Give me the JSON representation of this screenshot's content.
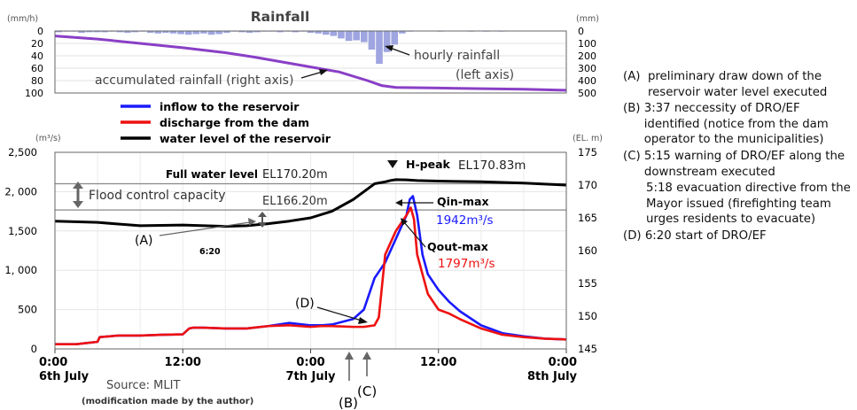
{
  "chart_data": {
    "type": "line",
    "rainfall_panel": {
      "title": "Rainfall",
      "left_unit": "(mm/h)",
      "right_unit": "(mm)",
      "left_ticks": [
        0,
        20,
        40,
        60,
        80,
        100
      ],
      "right_ticks": [
        0,
        100,
        200,
        300,
        400,
        500
      ],
      "hourly_rainfall_mm_per_h": [
        2,
        1,
        1,
        3,
        2,
        2,
        2,
        1,
        2,
        3,
        2,
        1,
        3,
        4,
        3,
        4,
        5,
        6,
        5,
        4,
        6,
        5,
        3,
        1,
        2,
        3,
        2,
        1,
        1,
        2,
        1,
        2,
        1,
        3,
        4,
        6,
        8,
        12,
        16,
        15,
        18,
        30,
        53,
        34,
        22,
        4,
        1,
        0,
        0,
        0,
        1,
        0,
        0,
        0,
        1,
        0,
        1,
        0,
        1,
        0,
        0,
        0,
        0,
        0,
        0,
        0,
        0
      ],
      "accumulated_rainfall_mm": {
        "x_hours": [
          0,
          6,
          12,
          18,
          24,
          28,
          32,
          36,
          40,
          44,
          46,
          48,
          54,
          60,
          66,
          72
        ],
        "values": [
          40,
          65,
          100,
          135,
          175,
          210,
          250,
          290,
          330,
          400,
          440,
          455,
          460,
          465,
          470,
          478
        ]
      },
      "annotations": {
        "hourly": "hourly rainfall",
        "hourly_axis": "(left axis)",
        "accumulated": "accumulated rainfall (right axis)"
      }
    },
    "main_panel": {
      "left_unit": "(m³/s)",
      "right_unit": "(EL. m)",
      "left_ticks": [
        "0",
        "500",
        "1, 000",
        "1,500",
        "2, 000",
        "2,500"
      ],
      "left_tick_values": [
        0,
        500,
        1000,
        1500,
        2000,
        2500
      ],
      "right_ticks": [
        "145",
        "150",
        "155",
        "160",
        "165",
        "170",
        "175"
      ],
      "x_ticks": [
        {
          "hour": 0,
          "time": "0:00",
          "date": "6th July"
        },
        {
          "hour": 12,
          "time": "12:00",
          "date": ""
        },
        {
          "hour": 24,
          "time": "0:00",
          "date": "7th July"
        },
        {
          "hour": 36,
          "time": "12:00",
          "date": ""
        },
        {
          "hour": 48,
          "time": "0:00",
          "date": "8th July"
        }
      ],
      "legend": [
        {
          "name": "inflow to the reservoir",
          "color": "#1a1aff"
        },
        {
          "name": "discharge from the dam",
          "color": "#ee1111"
        },
        {
          "name": "water level of the reservoir",
          "color": "#000000"
        }
      ],
      "series": [
        {
          "name": "inflow to the reservoir",
          "x": [
            0,
            2,
            4,
            4.2,
            6,
            8,
            10,
            12,
            12.6,
            13,
            14,
            16,
            18,
            20,
            22,
            24,
            25,
            26,
            28,
            29,
            30,
            31,
            32,
            33,
            33.3,
            33.6,
            34,
            34.5,
            35,
            36,
            37,
            38,
            40,
            42,
            44,
            46,
            48
          ],
          "values": [
            60,
            60,
            90,
            150,
            170,
            170,
            180,
            185,
            260,
            270,
            270,
            260,
            260,
            290,
            330,
            300,
            300,
            310,
            380,
            500,
            900,
            1100,
            1400,
            1700,
            1900,
            1942,
            1700,
            1200,
            950,
            750,
            600,
            480,
            300,
            200,
            160,
            130,
            120
          ]
        },
        {
          "name": "discharge from the dam",
          "x": [
            0,
            2,
            4,
            4.2,
            6,
            8,
            10,
            12,
            12.6,
            13,
            14,
            16,
            18,
            20,
            22,
            24,
            25,
            26,
            28,
            29,
            30,
            30.4,
            31,
            32,
            33,
            33.4,
            33.7,
            34,
            34.5,
            35,
            36,
            37,
            38,
            40,
            42,
            44,
            46,
            48
          ],
          "values": [
            60,
            60,
            90,
            150,
            170,
            170,
            180,
            185,
            260,
            270,
            270,
            260,
            260,
            290,
            300,
            280,
            290,
            290,
            280,
            280,
            300,
            400,
            1200,
            1500,
            1700,
            1797,
            1650,
            1200,
            950,
            700,
            500,
            450,
            380,
            260,
            180,
            150,
            130,
            120
          ]
        },
        {
          "name": "water level of the reservoir",
          "x": [
            0,
            4,
            8,
            12,
            14,
            16,
            18,
            20,
            22,
            24,
            26,
            28,
            29,
            30,
            31,
            31.5,
            32,
            33,
            34,
            36,
            40,
            44,
            48
          ],
          "values": [
            164.5,
            164.3,
            163.8,
            163.9,
            163.8,
            163.7,
            163.8,
            164.1,
            164.5,
            165.0,
            166.0,
            167.8,
            169.0,
            170.2,
            170.5,
            170.7,
            170.83,
            170.8,
            170.7,
            170.6,
            170.5,
            170.3,
            170.0
          ]
        }
      ],
      "reference_lines": [
        {
          "label": "Full water level",
          "value_label": "EL170.20m",
          "value": 170.2
        },
        {
          "label": "",
          "value_label": "EL166.20m",
          "value": 166.2
        }
      ],
      "labels": {
        "flood_control": "Flood control capacity",
        "h_peak": "H-peak",
        "h_peak_value": "EL170.83m",
        "qin_max": "Qin-max",
        "qin_max_value": "1942m³/s",
        "qout_max": "Qout-max",
        "qout_max_value": "1797m³/s",
        "time_620": "6:20",
        "marker_a": "(A)",
        "marker_b": "(B)",
        "marker_c": "(C)",
        "marker_d": "(D)",
        "source": "Source: MLIT",
        "modification": "(modification made by the author)"
      }
    }
  },
  "notes": [
    {
      "id": "a",
      "label": "(A)  ",
      "text": "preliminary draw down of the reservoir water level executed"
    },
    {
      "id": "b",
      "label": "(B) ",
      "text": "3:37 neccessity of DRO/EF identified (notice from the dam operator to the municipalities)"
    },
    {
      "id": "c",
      "label": "(C) ",
      "text": "5:15 warning of DRO/EF along the downstream executed"
    },
    {
      "id": "c2",
      "label": "",
      "text": "5:18 evacuation directive from the Mayor issued (firefighting team urges residents to evacuate)"
    },
    {
      "id": "d",
      "label": "(D) ",
      "text": "6:20 start of DRO/EF"
    }
  ],
  "colors": {
    "rain_bar": "#9fa5e0",
    "accumulated": "#8a3fc6",
    "grid": "#bbbbbb"
  }
}
